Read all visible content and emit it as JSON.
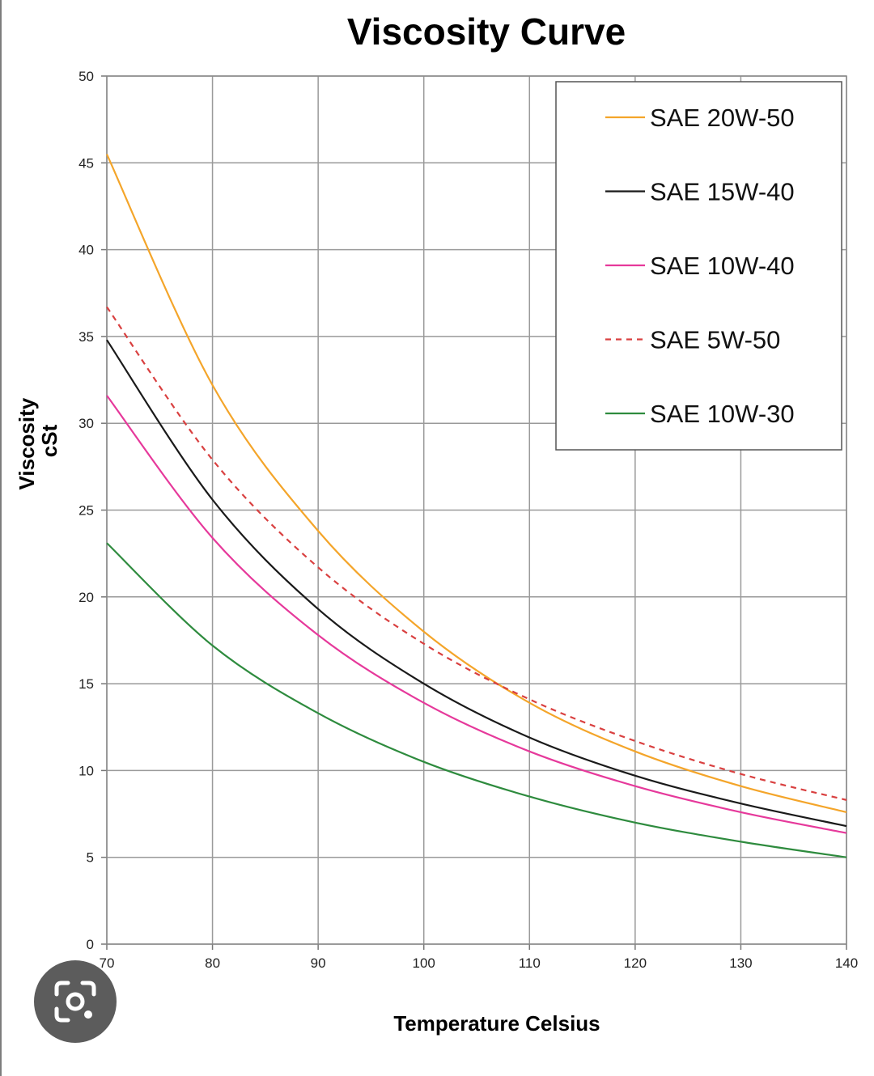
{
  "chart_data": {
    "type": "line",
    "title": "Viscosity Curve",
    "xlabel": "Temperature Celsius",
    "ylabel": [
      "Viscosity",
      "cSt"
    ],
    "xlim": [
      70,
      140
    ],
    "ylim": [
      0,
      50
    ],
    "x_ticks": [
      70,
      80,
      90,
      100,
      110,
      120,
      130,
      140
    ],
    "y_ticks": [
      0,
      5,
      10,
      15,
      20,
      25,
      30,
      35,
      40,
      45,
      50
    ],
    "grid": true,
    "legend_position": "top-right",
    "x": [
      70,
      80,
      90,
      100,
      110,
      120,
      130,
      140
    ],
    "series": [
      {
        "name": "SAE 20W-50",
        "color": "#f4a52a",
        "dash": false,
        "values": [
          45.5,
          32.2,
          23.8,
          18.0,
          13.9,
          11.1,
          9.1,
          7.6
        ]
      },
      {
        "name": "SAE 15W-40",
        "color": "#1a1a1a",
        "dash": false,
        "values": [
          34.8,
          25.6,
          19.3,
          15.0,
          11.9,
          9.7,
          8.1,
          6.8
        ]
      },
      {
        "name": "SAE 10W-40",
        "color": "#e6399b",
        "dash": false,
        "values": [
          31.6,
          23.4,
          17.8,
          13.9,
          11.1,
          9.1,
          7.6,
          6.4
        ]
      },
      {
        "name": "SAE 5W-50",
        "color": "#d94040",
        "dash": true,
        "values": [
          36.7,
          27.9,
          21.7,
          17.3,
          14.1,
          11.7,
          9.8,
          8.3
        ]
      },
      {
        "name": "SAE 10W-30",
        "color": "#2e8b3e",
        "dash": false,
        "values": [
          23.1,
          17.2,
          13.3,
          10.5,
          8.5,
          7.0,
          5.9,
          5.0
        ]
      }
    ]
  },
  "lens_button": {
    "icon": "camera-lens-icon"
  }
}
